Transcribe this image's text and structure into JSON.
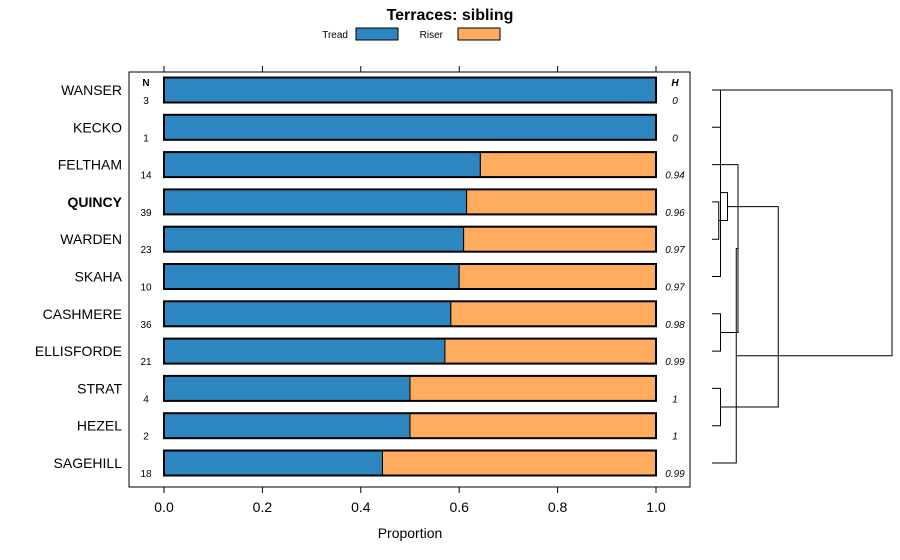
{
  "chart_data": {
    "type": "bar",
    "orientation": "horizontal",
    "stacked": true,
    "title": "Terraces: sibling",
    "xlabel": "Proportion",
    "xlim": [
      0,
      1
    ],
    "xticks": [
      "0.0",
      "0.2",
      "0.4",
      "0.6",
      "0.8",
      "1.0"
    ],
    "n_header": "N",
    "h_header": "H",
    "highlight": "QUINCY",
    "legend": [
      {
        "name": "Tread",
        "color": "#2e86c1"
      },
      {
        "name": "Riser",
        "color": "#ffac5e"
      }
    ],
    "categories": [
      "WANSER",
      "KECKO",
      "FELTHAM",
      "QUINCY",
      "WARDEN",
      "SKAHA",
      "CASHMERE",
      "ELLISFORDE",
      "STRAT",
      "HEZEL",
      "SAGEHILL"
    ],
    "series": [
      {
        "name": "Tread",
        "values": [
          1.0,
          1.0,
          0.643,
          0.615,
          0.609,
          0.6,
          0.583,
          0.571,
          0.5,
          0.5,
          0.444
        ]
      },
      {
        "name": "Riser",
        "values": [
          0.0,
          0.0,
          0.357,
          0.385,
          0.391,
          0.4,
          0.417,
          0.429,
          0.5,
          0.5,
          0.556
        ]
      }
    ],
    "n": [
      "3",
      "1",
      "14",
      "39",
      "23",
      "10",
      "36",
      "21",
      "4",
      "2",
      "18"
    ],
    "h": [
      "0",
      "0",
      "0.94",
      "0.96",
      "0.97",
      "0.97",
      "0.98",
      "0.99",
      "1",
      "1",
      "0.99"
    ],
    "dendrogram": [
      {
        "a": 0,
        "b": 1,
        "height": 0.02
      },
      {
        "a": 3,
        "b": 4,
        "height": 0.01
      },
      {
        "a": 11,
        "b": 5,
        "height": 0.02
      },
      {
        "a": 6,
        "b": 7,
        "height": 0.02
      },
      {
        "a": 12,
        "b": 13,
        "height": 0.06
      },
      {
        "a": 2,
        "b": 14,
        "height": 0.12
      },
      {
        "a": 8,
        "b": 9,
        "height": 0.02
      },
      {
        "a": 16,
        "b": 10,
        "height": 0.11
      },
      {
        "a": 15,
        "b": 17,
        "height": 0.35
      },
      {
        "a": 0,
        "b": 18,
        "height": 1.0
      }
    ]
  }
}
